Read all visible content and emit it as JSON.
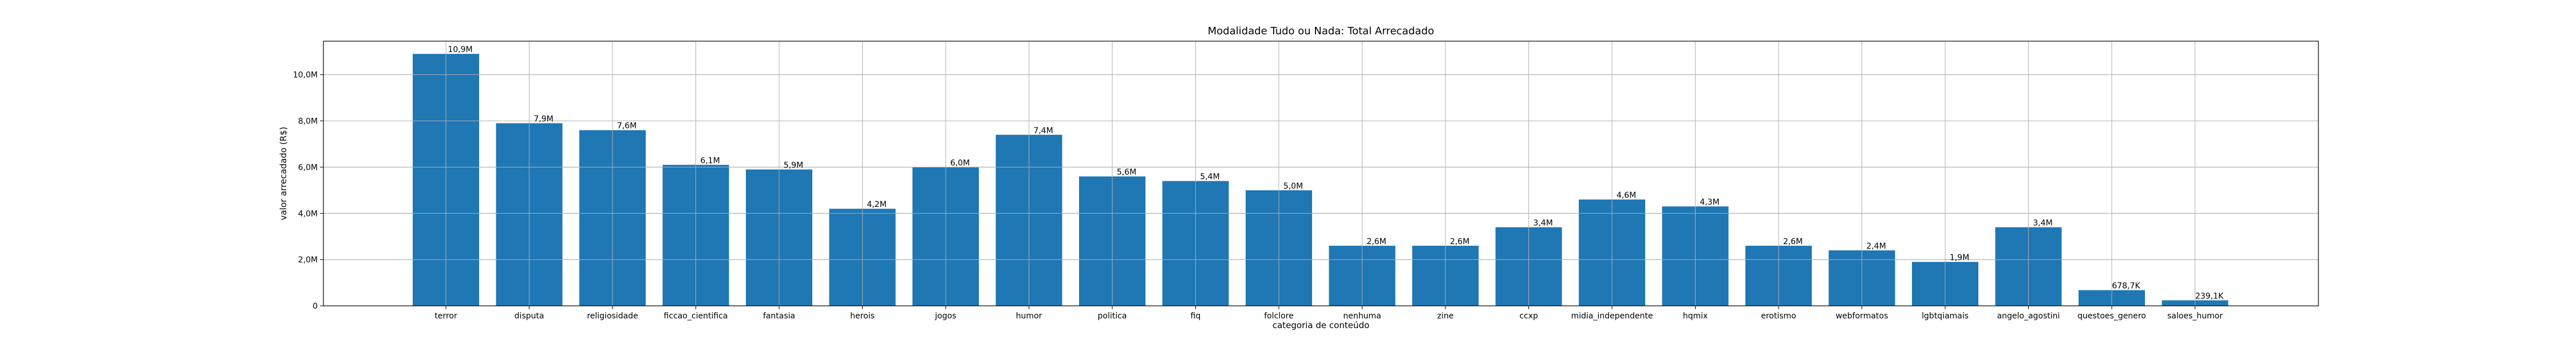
{
  "chart_data": {
    "type": "bar",
    "title": "Modalidade Tudo ou Nada: Total Arrecadado",
    "xlabel": "categoria de conteúdo",
    "ylabel": "valor arrecadado (R$)",
    "categories": [
      "terror",
      "disputa",
      "religiosidade",
      "ficcao_cientifica",
      "fantasia",
      "herois",
      "jogos",
      "humor",
      "politica",
      "fiq",
      "folclore",
      "nenhuma",
      "zine",
      "ccxp",
      "midia_independente",
      "hqmix",
      "erotismo",
      "webformatos",
      "lgbtqiamais",
      "angelo_agostini",
      "questoes_genero",
      "saloes_humor"
    ],
    "values": [
      10900000,
      7900000,
      7600000,
      6100000,
      5900000,
      4200000,
      6000000,
      7400000,
      5600000,
      5400000,
      5000000,
      2600000,
      2600000,
      3400000,
      4600000,
      4300000,
      2600000,
      2400000,
      1900000,
      3400000,
      678700,
      239100
    ],
    "value_labels": [
      "10,9M",
      "7,9M",
      "7,6M",
      "6,1M",
      "5,9M",
      "4,2M",
      "6,0M",
      "7,4M",
      "5,6M",
      "5,4M",
      "5,0M",
      "2,6M",
      "2,6M",
      "3,4M",
      "4,6M",
      "4,3M",
      "2,6M",
      "2,4M",
      "1,9M",
      "3,4M",
      "678,7K",
      "239,1K"
    ],
    "ylim": [
      0,
      11450000
    ],
    "yticks": [
      0,
      2000000,
      4000000,
      6000000,
      8000000,
      10000000
    ],
    "ytick_labels": [
      "0",
      "2,0M",
      "4,0M",
      "6,0M",
      "8,0M",
      "10,0M"
    ],
    "grid": true,
    "bar_color": "#1f77b4"
  }
}
